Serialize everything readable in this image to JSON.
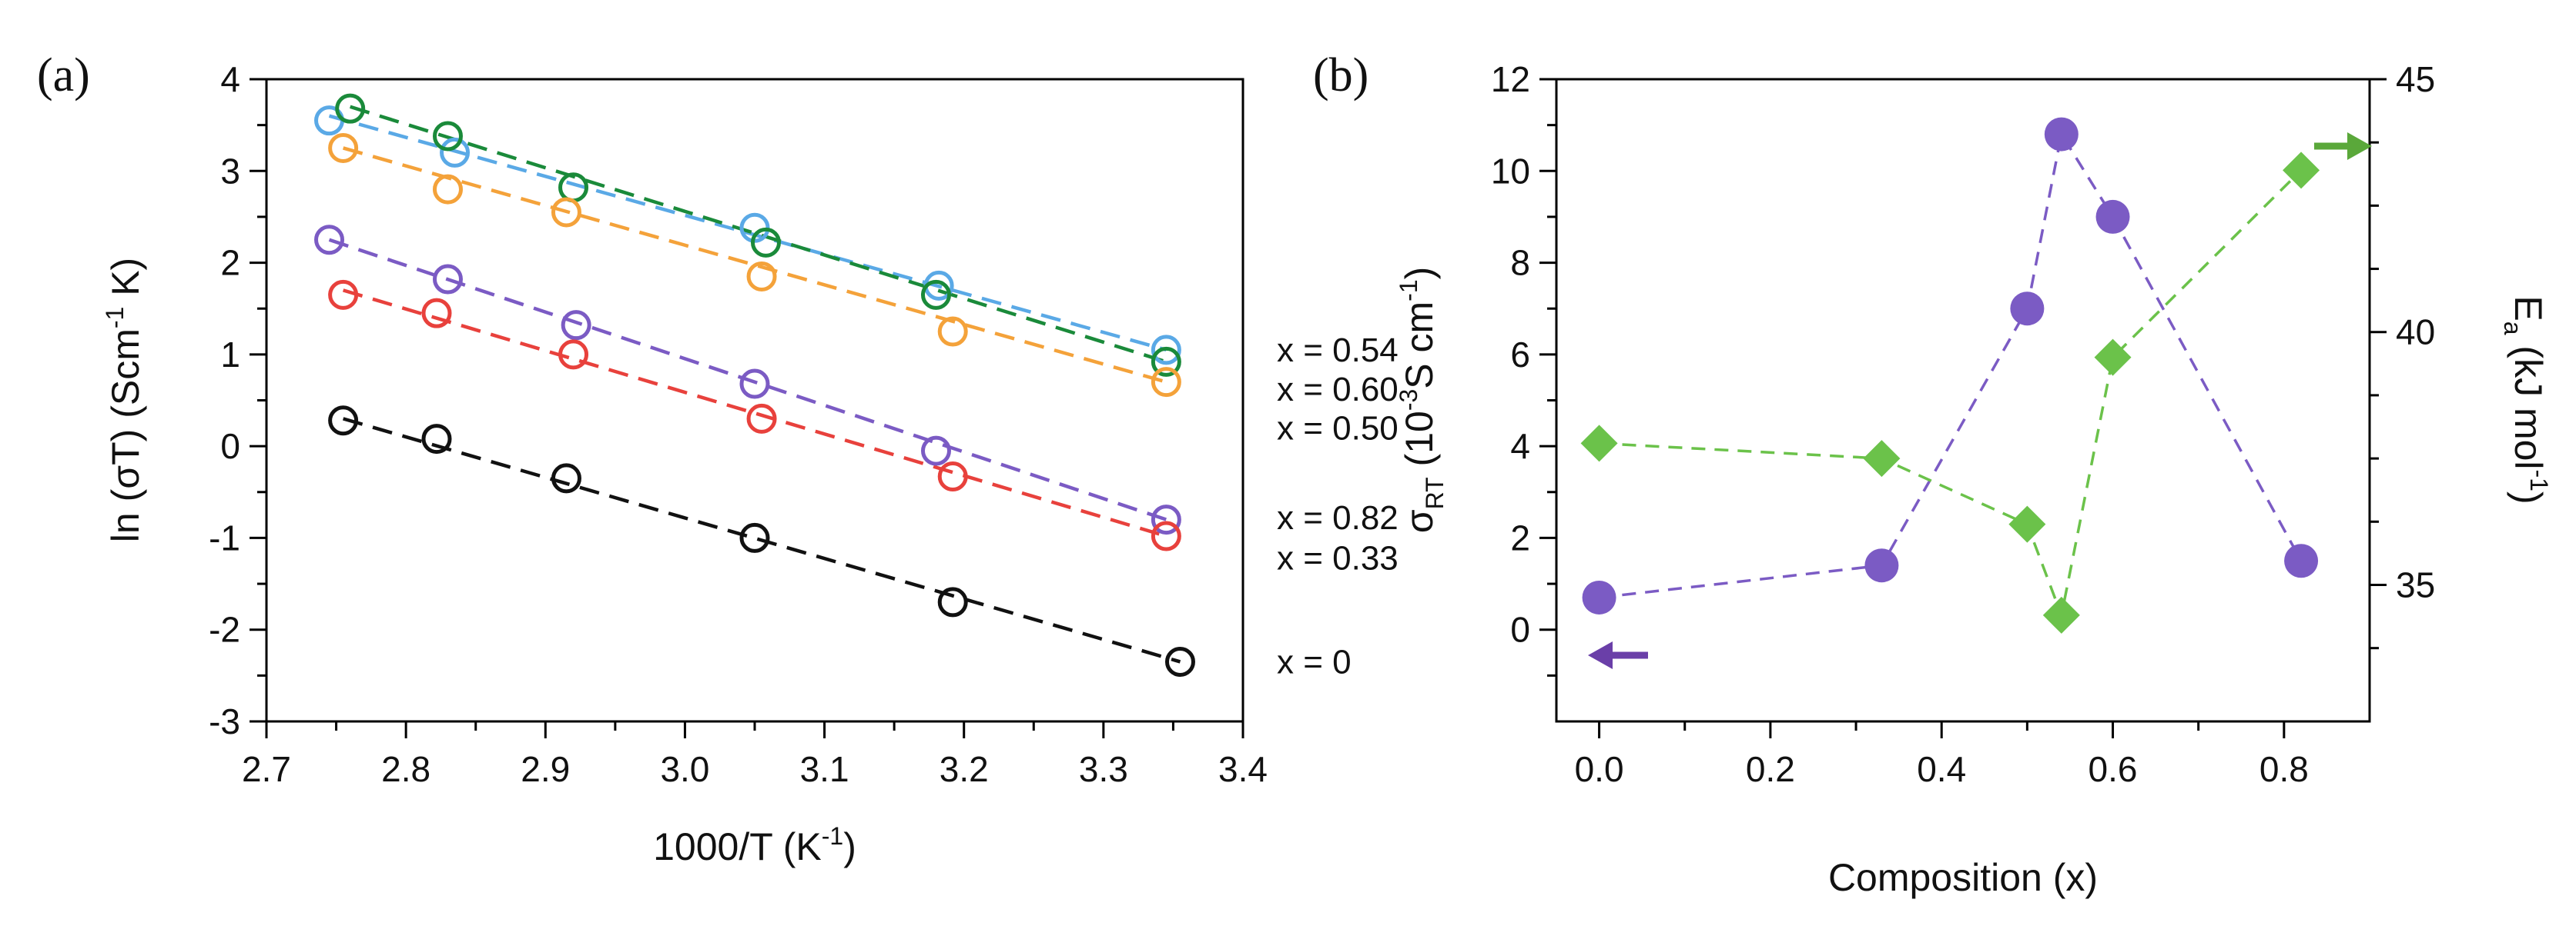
{
  "panels": {
    "a": {
      "label": "(a)",
      "chart_data": {
        "type": "scatter",
        "xlabel_main": "1000/T (K",
        "xlabel_sup": "-1",
        "xlabel_tail": ")",
        "ylabel_main": "ln (σT) (Scm",
        "ylabel_sup": "-1",
        "ylabel_tail": " K)",
        "xlim": [
          2.7,
          3.4
        ],
        "ylim": [
          -3,
          4
        ],
        "xticks": [
          "2.7",
          "2.8",
          "2.9",
          "3.0",
          "3.1",
          "3.2",
          "3.3",
          "3.4"
        ],
        "yticks": [
          "-3",
          "-2",
          "-1",
          "0",
          "1",
          "2",
          "3",
          "4"
        ],
        "series": [
          {
            "name": "x = 0.54",
            "color": "#5aa9e6",
            "x": [
              2.745,
              2.835,
              3.05,
              3.182,
              3.345
            ],
            "y": [
              3.55,
              3.2,
              2.38,
              1.75,
              1.05
            ],
            "fit": [
              [
                2.745,
                3.6
              ],
              [
                3.345,
                1.05
              ]
            ]
          },
          {
            "name": "x = 0.60",
            "color": "#1a8a3a",
            "x": [
              2.76,
              2.83,
              2.92,
              3.058,
              3.18,
              3.345
            ],
            "y": [
              3.68,
              3.38,
              2.82,
              2.22,
              1.65,
              0.92
            ],
            "fit": [
              [
                2.76,
                3.7
              ],
              [
                3.345,
                0.92
              ]
            ]
          },
          {
            "name": "x = 0.50",
            "color": "#f4a23a",
            "x": [
              2.755,
              2.83,
              2.915,
              3.055,
              3.192,
              3.345
            ],
            "y": [
              3.25,
              2.8,
              2.55,
              1.85,
              1.25,
              0.7
            ],
            "fit": [
              [
                2.755,
                3.25
              ],
              [
                3.345,
                0.7
              ]
            ]
          },
          {
            "name": "x = 0.82",
            "color": "#7b5bc4",
            "x": [
              2.745,
              2.83,
              2.922,
              3.05,
              3.18,
              3.345
            ],
            "y": [
              2.25,
              1.82,
              1.32,
              0.68,
              -0.05,
              -0.8
            ],
            "fit": [
              [
                2.745,
                2.25
              ],
              [
                3.345,
                -0.8
              ]
            ]
          },
          {
            "name": "x = 0.33",
            "color": "#e8413c",
            "x": [
              2.755,
              2.822,
              2.92,
              3.055,
              3.192,
              3.345
            ],
            "y": [
              1.65,
              1.45,
              1.0,
              0.3,
              -0.33,
              -0.98
            ],
            "fit": [
              [
                2.755,
                1.7
              ],
              [
                3.345,
                -0.98
              ]
            ]
          },
          {
            "name": "x = 0",
            "color": "#111111",
            "x": [
              2.755,
              2.822,
              2.915,
              3.05,
              3.192,
              3.355
            ],
            "y": [
              0.28,
              0.08,
              -0.35,
              -1.0,
              -1.7,
              -2.35
            ],
            "fit": [
              [
                2.755,
                0.3
              ],
              [
                3.355,
                -2.35
              ]
            ]
          }
        ]
      }
    },
    "b": {
      "label": "(b)",
      "chart_data": {
        "type": "scatter",
        "xlabel": "Composition (x)",
        "ylabel_left_main": "σ",
        "ylabel_left_sub": "RT",
        "ylabel_left_mid": " (10",
        "ylabel_left_sup": "-3",
        "ylabel_left_tail": "S cm",
        "ylabel_left_sup2": "-1",
        "ylabel_left_end": ")",
        "ylabel_right_main": "E",
        "ylabel_right_sub": "a",
        "ylabel_right_mid": " (kJ mol",
        "ylabel_right_sup": "-1",
        "ylabel_right_end": ")",
        "xlim": [
          -0.05,
          0.9
        ],
        "ylim_left": [
          -2,
          12
        ],
        "ylim_right": [
          32.3,
          45
        ],
        "xticks": [
          "0.0",
          "0.2",
          "0.4",
          "0.6",
          "0.8"
        ],
        "yticks_left": [
          "0",
          "2",
          "4",
          "6",
          "8",
          "10",
          "12"
        ],
        "yticks_right": [
          "35",
          "40",
          "45"
        ],
        "series": [
          {
            "name": "σRT",
            "axis": "left",
            "color": "#7b5bc4",
            "marker": "circle",
            "x": [
              0.0,
              0.33,
              0.5,
              0.54,
              0.6,
              0.82
            ],
            "y": [
              0.7,
              1.4,
              7.0,
              10.8,
              9.0,
              1.5
            ]
          },
          {
            "name": "Ea",
            "axis": "right",
            "color": "#6bc24a",
            "marker": "diamond",
            "x": [
              0.0,
              0.33,
              0.5,
              0.54,
              0.6,
              0.82
            ],
            "y": [
              37.8,
              37.5,
              36.2,
              34.4,
              39.5,
              43.2
            ]
          }
        ]
      }
    }
  }
}
